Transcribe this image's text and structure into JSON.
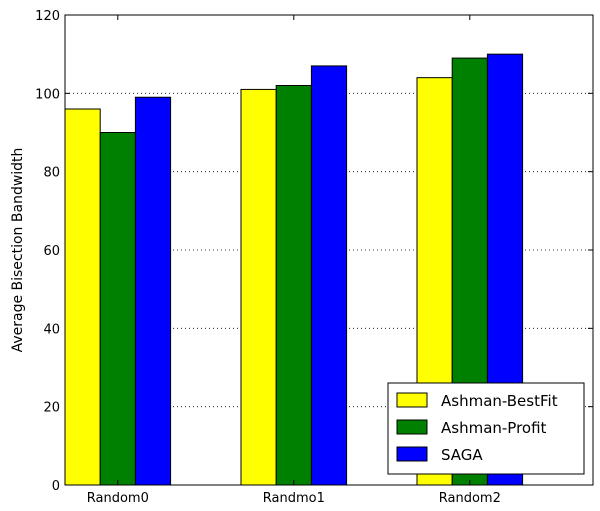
{
  "chart_data": {
    "type": "bar",
    "title": "",
    "xlabel": "",
    "ylabel": "Average Bisection Bandwidth",
    "categories": [
      "Random0",
      "Randmo1",
      "Random2"
    ],
    "series": [
      {
        "name": "Ashman-BestFit",
        "color": "#ffff00",
        "values": [
          96,
          101,
          104
        ]
      },
      {
        "name": "Ashman-Profit",
        "color": "#008000",
        "values": [
          90,
          102,
          109
        ]
      },
      {
        "name": "SAGA",
        "color": "#0000ff",
        "values": [
          99,
          107,
          110
        ]
      }
    ],
    "ylim": [
      0,
      120
    ],
    "yticks": [
      0,
      20,
      40,
      60,
      80,
      100,
      120
    ],
    "grid": true,
    "legend_position": "bottom-right"
  }
}
